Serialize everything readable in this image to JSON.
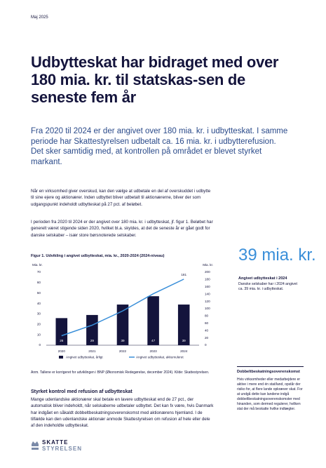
{
  "header": {
    "date": "Maj 2025"
  },
  "title": "Udbytteskat har bidraget med over 180 mia. kr. til statskas-sen de seneste fem år",
  "lead": "Fra 2020 til 2024 er der angivet over 180 mia. kr. i udbytteskat. I samme periode har Skattestyrelsen udbetalt ca. 16 mia. kr. i udbytterefusion. Det sker samtidig med, at kontrollen på området er blevet styrket markant.",
  "paragraphs": [
    "Når en virksomhed giver overskud, kan den vælge at udbetale en del af overskuddet i udbytte til sine ejere og aktionærer. Inden udbyttet bliver udbetalt til aktionærerne, bliver der som udgangspunkt indeholdt udbytteskat på 27 pct. af beløbet.",
    "I perioden fra 2020 til 2024 er der angivet over 180 mia. kr. i udbytteskat, jf. figur 1. Beløbet har generelt været stigende siden 2020, hvilket bl.a. skyldes, at det de seneste år er gået godt for danske selskaber – især store børsnoterede selskaber."
  ],
  "figure_caption": "Figur 1. Udvikling i angivet udbytteskat, mia. kr., 2020-2024 (2024-niveau)",
  "chart_data": {
    "type": "bar",
    "y_label": "Mia. kr.",
    "y2_label": "Mia. kr.",
    "categories": [
      "2020",
      "2021",
      "2022",
      "2023",
      "2024"
    ],
    "series": [
      {
        "name": "Angivet udbytteskat, årligt",
        "type": "bar",
        "color": "#14143c",
        "values": [
          26,
          29,
          39,
          47,
          39
        ]
      },
      {
        "name": "Angivet udbytteskat, akkumuleret",
        "type": "line",
        "axis": "y2",
        "color": "#3a8fd9",
        "values": [
          26,
          55,
          94,
          141,
          181
        ]
      }
    ],
    "ylim": [
      0,
      70
    ],
    "yticks": [
      0,
      10,
      20,
      30,
      40,
      50,
      60,
      70
    ],
    "y2lim": [
      0,
      200
    ],
    "y2ticks": [
      0,
      20,
      40,
      60,
      80,
      100,
      120,
      140,
      160,
      180,
      200
    ]
  },
  "note": "Anm. Tallene er korrigeret for udviklingen i BNP (Økonomisk Redegørelse, december 2024). Kilde: Skattestyrelsen.",
  "highlight": {
    "value": "39 mia. kr.",
    "label": "Angivet udbytteskat i 2024",
    "text": "Danske selskaber har i 2024 angivet ca. 39 mia. kr. i udbytteskat."
  },
  "section": {
    "heading": "Styrket kontrol med refusion af udbytteskat",
    "text": "Mange udenlandske aktionærer skal betale en lavere udbytteskat end de 27 pct., der automatisk bliver indeholdt, når selskaberne udbetaler udbyttet. Det kan fx være, hvis Danmark har indgået en såkaldt dobbeltbeskatningsoverenskomst med aktionærens hjemland. I de tilfælde kan den udenlandske aktionær anmode Skattestyrelsen om refusion af hele eller dele af den indeholdte udbytteskat."
  },
  "box": {
    "title": "Dobbeltbeskatningsoverenskomst",
    "text": "Hvis virksomheder eller medarbejdere er aktive i mere end én stat/land, opstår der risiko for, at flere lande opkræver skat. For at undgå dette kan landene indgå dobbeltbeskatningsoverenskomster med hinanden, som dermed regulerer, hvilken stat der må beskatte hvilke indtægter."
  },
  "logo": {
    "line1": "SKATTE",
    "line2": "STYRELSEN"
  }
}
